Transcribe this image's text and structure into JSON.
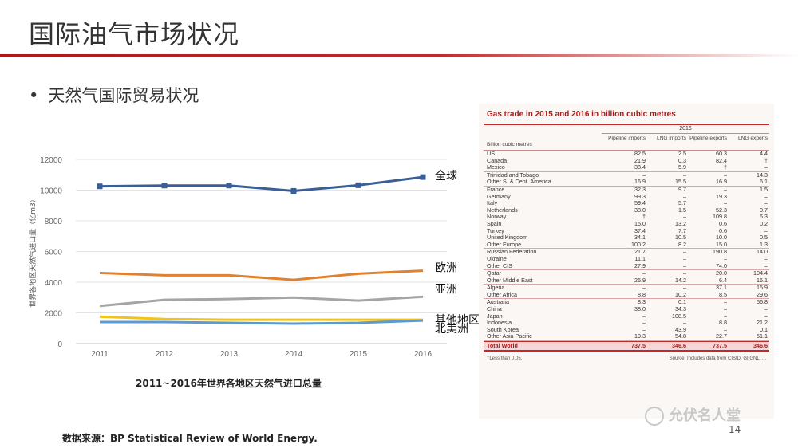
{
  "slide": {
    "title": "国际油气市场状况",
    "bullet": "天然气国际贸易状况",
    "page_number": "14",
    "source": "数据来源：BP Statistical Review of World Energy.",
    "watermark": "允伏名人堂",
    "chart_caption": "2011~2016年世界各地区天然气进口总量"
  },
  "colors": {
    "title_rule": "#b01818",
    "world": "#3a5f96",
    "europe": "#e0812f",
    "asia": "#a5a5a5",
    "others": "#f2c318",
    "north_america": "#5b9bd5",
    "north_america_green": "#70ad47"
  },
  "chart_data": {
    "type": "line",
    "title": "2011~2016年世界各地区天然气进口总量",
    "ylabel": "世界各地区天然气进口量（亿m3）",
    "xlabel": "",
    "x": [
      "2011",
      "2012",
      "2013",
      "2014",
      "2015",
      "2016"
    ],
    "ylim": [
      0,
      12000
    ],
    "yticks": [
      "0",
      "2000",
      "4000",
      "6000",
      "8000",
      "10000",
      "12000"
    ],
    "grid": true,
    "legend": "end-of-line labels",
    "series": [
      {
        "name": "全球",
        "values": [
          10250,
          10300,
          10300,
          9950,
          10320,
          10850
        ],
        "color": "#3a5f96",
        "marker": "square"
      },
      {
        "name": "欧洲",
        "values": [
          4600,
          4450,
          4450,
          4150,
          4550,
          4750
        ],
        "color": "#e0812f",
        "marker": "none"
      },
      {
        "name": "亚洲",
        "values": [
          2450,
          2850,
          2900,
          3000,
          2800,
          3050
        ],
        "color": "#a5a5a5",
        "marker": "none"
      },
      {
        "name": "其他地区",
        "values": [
          1750,
          1600,
          1550,
          1550,
          1550,
          1550
        ],
        "color": "#f2c318",
        "marker": "none"
      },
      {
        "name": "北美洲",
        "values": [
          1400,
          1400,
          1350,
          1300,
          1350,
          1500
        ],
        "color": "#5b9bd5",
        "marker": "none"
      }
    ]
  },
  "bp_table": {
    "title": "Gas trade in 2015 and 2016 in billion cubic metres",
    "year": "2016",
    "headers": [
      "Billion cubic metres",
      "Pipeline imports",
      "LNG imports",
      "Pipeline exports",
      "LNG exports"
    ],
    "rows": [
      [
        "US",
        "82.5",
        "2.5",
        "60.3",
        "4.4"
      ],
      [
        "Canada",
        "21.9",
        "0.3",
        "82.4",
        "†"
      ],
      [
        "Mexico",
        "38.4",
        "5.9",
        "†",
        "–"
      ],
      [
        "Trinidad and Tobago",
        "–",
        "–",
        "–",
        "14.3"
      ],
      [
        "Other S. & Cent. America",
        "16.9",
        "15.5",
        "16.9",
        "6.1"
      ],
      [
        "France",
        "32.3",
        "9.7",
        "–",
        "1.5"
      ],
      [
        "Germany",
        "99.3",
        "–",
        "19.3",
        "–"
      ],
      [
        "Italy",
        "59.4",
        "5.7",
        "–",
        "–"
      ],
      [
        "Netherlands",
        "38.0",
        "1.5",
        "52.3",
        "0.7"
      ],
      [
        "Norway",
        "†",
        "–",
        "109.8",
        "6.3"
      ],
      [
        "Spain",
        "15.0",
        "13.2",
        "0.6",
        "0.2"
      ],
      [
        "Turkey",
        "37.4",
        "7.7",
        "0.6",
        "–"
      ],
      [
        "United Kingdom",
        "34.1",
        "10.5",
        "10.0",
        "0.5"
      ],
      [
        "Other Europe",
        "100.2",
        "8.2",
        "15.0",
        "1.3"
      ],
      [
        "Russian Federation",
        "21.7",
        "–",
        "190.8",
        "14.0"
      ],
      [
        "Ukraine",
        "11.1",
        "–",
        "–",
        "–"
      ],
      [
        "Other CIS",
        "27.9",
        "–",
        "74.0",
        "–"
      ],
      [
        "Qatar",
        "–",
        "–",
        "20.0",
        "104.4"
      ],
      [
        "Other Middle East",
        "26.9",
        "14.2",
        "6.4",
        "16.1"
      ],
      [
        "Algeria",
        "–",
        "–",
        "37.1",
        "15.9"
      ],
      [
        "Other Africa",
        "8.8",
        "10.2",
        "8.5",
        "29.6"
      ],
      [
        "Australia",
        "8.3",
        "0.1",
        "–",
        "56.8"
      ],
      [
        "China",
        "38.0",
        "34.3",
        "–",
        "–"
      ],
      [
        "Japan",
        "–",
        "108.5",
        "–",
        "–"
      ],
      [
        "Indonesia",
        "–",
        "–",
        "8.8",
        "21.2"
      ],
      [
        "South Korea",
        "–",
        "43.9",
        "–",
        "0.1"
      ],
      [
        "Other Asia Pacific",
        "19.3",
        "54.8",
        "22.7",
        "51.1"
      ]
    ],
    "group_ends": [
      2,
      4,
      13,
      16,
      18,
      20,
      26
    ],
    "total": [
      "Total World",
      "737.5",
      "346.6",
      "737.5",
      "346.6"
    ],
    "footnote": "†Less than 0.05.",
    "source_note": "Source: Includes data from CISID, GIIGNL, ..."
  }
}
